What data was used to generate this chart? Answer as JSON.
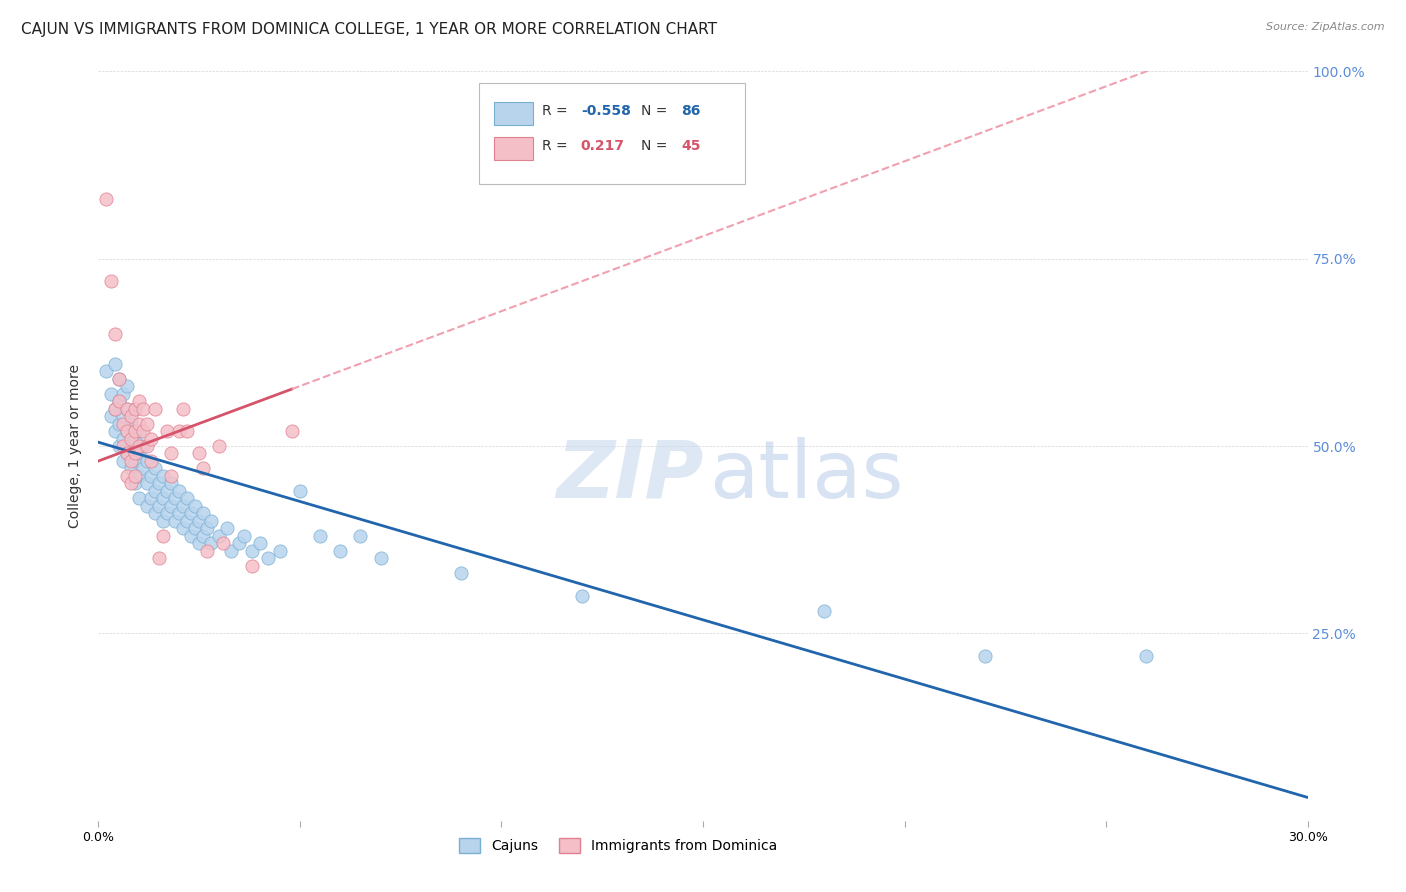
{
  "title": "CAJUN VS IMMIGRANTS FROM DOMINICA COLLEGE, 1 YEAR OR MORE CORRELATION CHART",
  "source": "Source: ZipAtlas.com",
  "ylabel": "College, 1 year or more",
  "right_yticks": [
    0.0,
    0.25,
    0.5,
    0.75,
    1.0
  ],
  "right_yticklabels": [
    "",
    "25.0%",
    "50.0%",
    "75.0%",
    "100.0%"
  ],
  "xlim": [
    0.0,
    0.3
  ],
  "ylim": [
    0.0,
    1.0
  ],
  "cajun_color": "#b8d4ed",
  "cajun_edge_color": "#7aafd4",
  "dominica_color": "#f5bfc8",
  "dominica_edge_color": "#e08090",
  "cajun_line_color": "#2166ac",
  "dominica_line_color": "#d6546a",
  "dominica_dashed_color": "#f0a0b0",
  "legend_R_cajun": "-0.558",
  "legend_N_cajun": "86",
  "legend_R_dominica": "0.217",
  "legend_N_dominica": "45",
  "cajun_scatter": [
    [
      0.002,
      0.6
    ],
    [
      0.003,
      0.57
    ],
    [
      0.003,
      0.54
    ],
    [
      0.004,
      0.61
    ],
    [
      0.004,
      0.55
    ],
    [
      0.004,
      0.52
    ],
    [
      0.005,
      0.59
    ],
    [
      0.005,
      0.56
    ],
    [
      0.005,
      0.53
    ],
    [
      0.005,
      0.5
    ],
    [
      0.006,
      0.57
    ],
    [
      0.006,
      0.54
    ],
    [
      0.006,
      0.51
    ],
    [
      0.006,
      0.48
    ],
    [
      0.007,
      0.55
    ],
    [
      0.007,
      0.52
    ],
    [
      0.007,
      0.49
    ],
    [
      0.007,
      0.58
    ],
    [
      0.008,
      0.53
    ],
    [
      0.008,
      0.5
    ],
    [
      0.008,
      0.47
    ],
    [
      0.009,
      0.55
    ],
    [
      0.009,
      0.51
    ],
    [
      0.009,
      0.48
    ],
    [
      0.009,
      0.45
    ],
    [
      0.01,
      0.52
    ],
    [
      0.01,
      0.49
    ],
    [
      0.01,
      0.46
    ],
    [
      0.01,
      0.43
    ],
    [
      0.011,
      0.5
    ],
    [
      0.011,
      0.47
    ],
    [
      0.012,
      0.48
    ],
    [
      0.012,
      0.45
    ],
    [
      0.012,
      0.42
    ],
    [
      0.013,
      0.46
    ],
    [
      0.013,
      0.43
    ],
    [
      0.014,
      0.47
    ],
    [
      0.014,
      0.44
    ],
    [
      0.014,
      0.41
    ],
    [
      0.015,
      0.45
    ],
    [
      0.015,
      0.42
    ],
    [
      0.016,
      0.46
    ],
    [
      0.016,
      0.43
    ],
    [
      0.016,
      0.4
    ],
    [
      0.017,
      0.44
    ],
    [
      0.017,
      0.41
    ],
    [
      0.018,
      0.45
    ],
    [
      0.018,
      0.42
    ],
    [
      0.019,
      0.43
    ],
    [
      0.019,
      0.4
    ],
    [
      0.02,
      0.44
    ],
    [
      0.02,
      0.41
    ],
    [
      0.021,
      0.42
    ],
    [
      0.021,
      0.39
    ],
    [
      0.022,
      0.43
    ],
    [
      0.022,
      0.4
    ],
    [
      0.023,
      0.41
    ],
    [
      0.023,
      0.38
    ],
    [
      0.024,
      0.42
    ],
    [
      0.024,
      0.39
    ],
    [
      0.025,
      0.4
    ],
    [
      0.025,
      0.37
    ],
    [
      0.026,
      0.41
    ],
    [
      0.026,
      0.38
    ],
    [
      0.027,
      0.39
    ],
    [
      0.028,
      0.4
    ],
    [
      0.028,
      0.37
    ],
    [
      0.03,
      0.38
    ],
    [
      0.032,
      0.39
    ],
    [
      0.033,
      0.36
    ],
    [
      0.035,
      0.37
    ],
    [
      0.036,
      0.38
    ],
    [
      0.038,
      0.36
    ],
    [
      0.04,
      0.37
    ],
    [
      0.042,
      0.35
    ],
    [
      0.045,
      0.36
    ],
    [
      0.05,
      0.44
    ],
    [
      0.055,
      0.38
    ],
    [
      0.06,
      0.36
    ],
    [
      0.065,
      0.38
    ],
    [
      0.07,
      0.35
    ],
    [
      0.09,
      0.33
    ],
    [
      0.12,
      0.3
    ],
    [
      0.18,
      0.28
    ],
    [
      0.22,
      0.22
    ],
    [
      0.26,
      0.22
    ]
  ],
  "dominica_scatter": [
    [
      0.002,
      0.83
    ],
    [
      0.003,
      0.72
    ],
    [
      0.004,
      0.65
    ],
    [
      0.004,
      0.55
    ],
    [
      0.005,
      0.59
    ],
    [
      0.005,
      0.56
    ],
    [
      0.006,
      0.53
    ],
    [
      0.006,
      0.5
    ],
    [
      0.007,
      0.55
    ],
    [
      0.007,
      0.52
    ],
    [
      0.007,
      0.49
    ],
    [
      0.007,
      0.46
    ],
    [
      0.008,
      0.54
    ],
    [
      0.008,
      0.51
    ],
    [
      0.008,
      0.48
    ],
    [
      0.008,
      0.45
    ],
    [
      0.009,
      0.55
    ],
    [
      0.009,
      0.52
    ],
    [
      0.009,
      0.49
    ],
    [
      0.009,
      0.46
    ],
    [
      0.01,
      0.56
    ],
    [
      0.01,
      0.53
    ],
    [
      0.01,
      0.5
    ],
    [
      0.011,
      0.55
    ],
    [
      0.011,
      0.52
    ],
    [
      0.012,
      0.53
    ],
    [
      0.012,
      0.5
    ],
    [
      0.013,
      0.51
    ],
    [
      0.013,
      0.48
    ],
    [
      0.014,
      0.55
    ],
    [
      0.015,
      0.35
    ],
    [
      0.016,
      0.38
    ],
    [
      0.017,
      0.52
    ],
    [
      0.018,
      0.49
    ],
    [
      0.018,
      0.46
    ],
    [
      0.02,
      0.52
    ],
    [
      0.021,
      0.55
    ],
    [
      0.022,
      0.52
    ],
    [
      0.025,
      0.49
    ],
    [
      0.026,
      0.47
    ],
    [
      0.027,
      0.36
    ],
    [
      0.03,
      0.5
    ],
    [
      0.031,
      0.37
    ],
    [
      0.038,
      0.34
    ],
    [
      0.048,
      0.52
    ]
  ],
  "background_color": "#ffffff",
  "grid_color": "#cccccc",
  "title_fontsize": 11,
  "axis_fontsize": 9,
  "watermark_zip_color": "#c8d8ee",
  "watermark_atlas_color": "#b0c8e8"
}
